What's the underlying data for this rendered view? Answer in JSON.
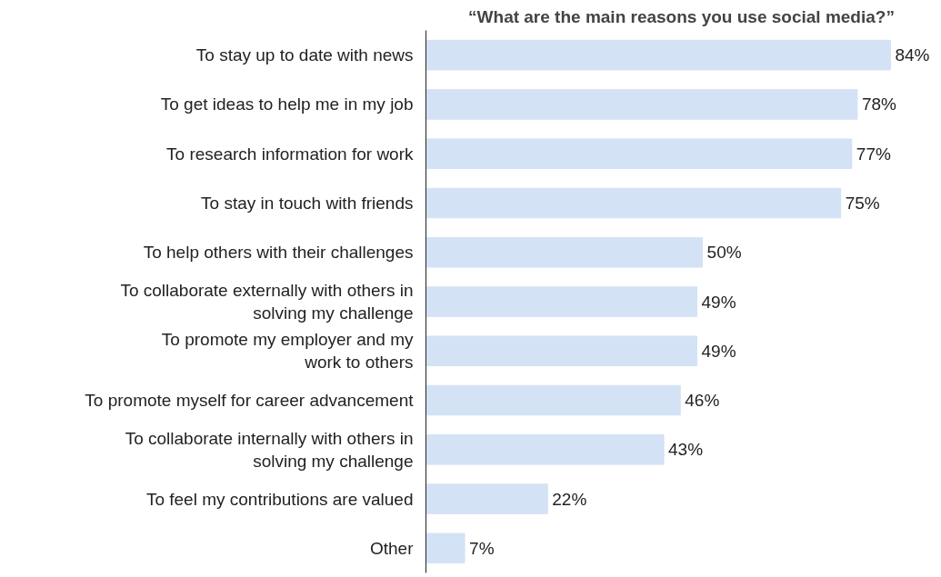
{
  "chart_data": {
    "type": "bar",
    "orientation": "horizontal",
    "title": "“What are the main reasons you use social media?”",
    "categories": [
      "To stay up to date with news",
      "To get ideas to help me in my job",
      "To research information for work",
      "To stay in touch with friends",
      "To help others with their challenges",
      "To collaborate externally with others in\nsolving my challenge",
      "To promote my employer and my\nwork to others",
      "To promote myself for career advancement",
      "To collaborate internally with others in\nsolving my challenge",
      "To feel my contributions are valued",
      "Other"
    ],
    "values": [
      84,
      78,
      77,
      75,
      50,
      49,
      49,
      46,
      43,
      22,
      7
    ],
    "value_labels": [
      "84%",
      "78%",
      "77%",
      "75%",
      "50%",
      "49%",
      "49%",
      "46%",
      "43%",
      "22%",
      "7%"
    ],
    "color": "#d4e2f5",
    "tick_labels": "y",
    "grid": false
  }
}
